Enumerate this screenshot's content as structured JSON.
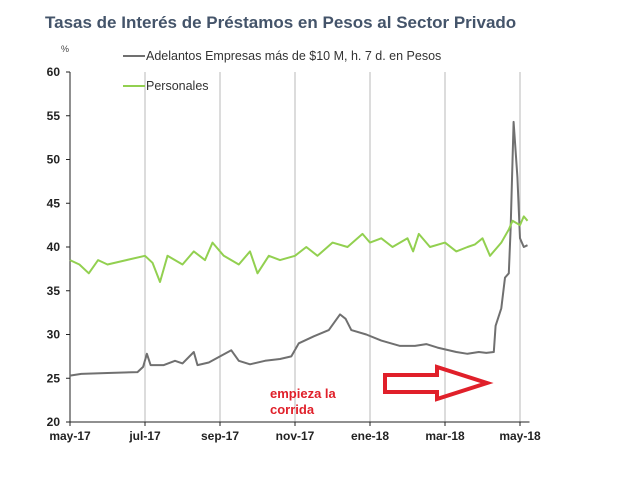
{
  "chart_data": {
    "type": "line",
    "title": "Tasas de Interés de Préstamos en Pesos al Sector Privado",
    "ylabel": "%",
    "xlabel": "",
    "ylim": [
      20,
      60
    ],
    "yticks": [
      20,
      25,
      30,
      35,
      40,
      45,
      50,
      55,
      60
    ],
    "xlim": [
      0,
      12.2
    ],
    "x_unit": "months since may-17",
    "xticks": [
      {
        "x": 0,
        "label": "may-17"
      },
      {
        "x": 2,
        "label": "jul-17"
      },
      {
        "x": 4,
        "label": "sep-17"
      },
      {
        "x": 6,
        "label": "nov-17"
      },
      {
        "x": 8,
        "label": "ene-18"
      },
      {
        "x": 10,
        "label": "mar-18"
      },
      {
        "x": 12,
        "label": "may-18"
      }
    ],
    "grid": "vertical",
    "legend_position": "top",
    "series": [
      {
        "name": "Adelantos Empresas más de $10 M, h. 7 d. en Pesos",
        "color": "#707070",
        "x": [
          0,
          0.3,
          1,
          1.8,
          1.95,
          2.05,
          2.15,
          2.5,
          2.8,
          3.0,
          3.3,
          3.4,
          3.7,
          4,
          4.3,
          4.5,
          4.8,
          5.2,
          5.6,
          5.9,
          6.1,
          6.5,
          6.9,
          7.2,
          7.35,
          7.5,
          7.9,
          8.3,
          8.8,
          9.2,
          9.5,
          9.8,
          10.3,
          10.6,
          10.9,
          11.1,
          11.3,
          11.35,
          11.5,
          11.6,
          11.7,
          11.75,
          11.83,
          11.93,
          12.0,
          12.1,
          12.2
        ],
        "y": [
          25.3,
          25.5,
          25.6,
          25.7,
          26.3,
          27.8,
          26.5,
          26.5,
          27,
          26.7,
          28,
          26.5,
          26.8,
          27.5,
          28.2,
          27,
          26.6,
          27,
          27.2,
          27.5,
          29,
          29.8,
          30.5,
          32.3,
          31.8,
          30.5,
          30,
          29.3,
          28.7,
          28.7,
          28.9,
          28.5,
          28,
          27.8,
          28,
          27.9,
          28,
          31,
          33,
          36.5,
          37,
          42,
          54.3,
          48,
          41,
          40,
          40.2
        ]
      },
      {
        "name": "Personales",
        "color": "#92d050",
        "x": [
          0,
          0.25,
          0.5,
          0.75,
          1,
          1.5,
          2,
          2.2,
          2.4,
          2.6,
          3,
          3.3,
          3.6,
          3.8,
          4.1,
          4.5,
          4.8,
          5,
          5.3,
          5.6,
          6,
          6.3,
          6.6,
          7,
          7.4,
          7.8,
          8,
          8.3,
          8.6,
          9,
          9.15,
          9.3,
          9.6,
          10,
          10.3,
          10.6,
          10.8,
          11,
          11.2,
          11.5,
          11.7,
          11.8,
          12,
          12.1,
          12.2
        ],
        "y": [
          38.5,
          38,
          37,
          38.5,
          38,
          38.5,
          39,
          38.2,
          36,
          39,
          38,
          39.5,
          38.5,
          40.5,
          39,
          38,
          39.5,
          37,
          39,
          38.5,
          39,
          40,
          39,
          40.5,
          40,
          41.5,
          40.5,
          41,
          40,
          41,
          39.5,
          41.5,
          40,
          40.5,
          39.5,
          40,
          40.3,
          41,
          39,
          40.5,
          42,
          43,
          42.5,
          43.5,
          43
        ]
      }
    ],
    "annotations": [
      {
        "text_line1": "empieza la",
        "text_line2": "corrida",
        "color": "#e0202a",
        "arrow": "right"
      }
    ]
  }
}
